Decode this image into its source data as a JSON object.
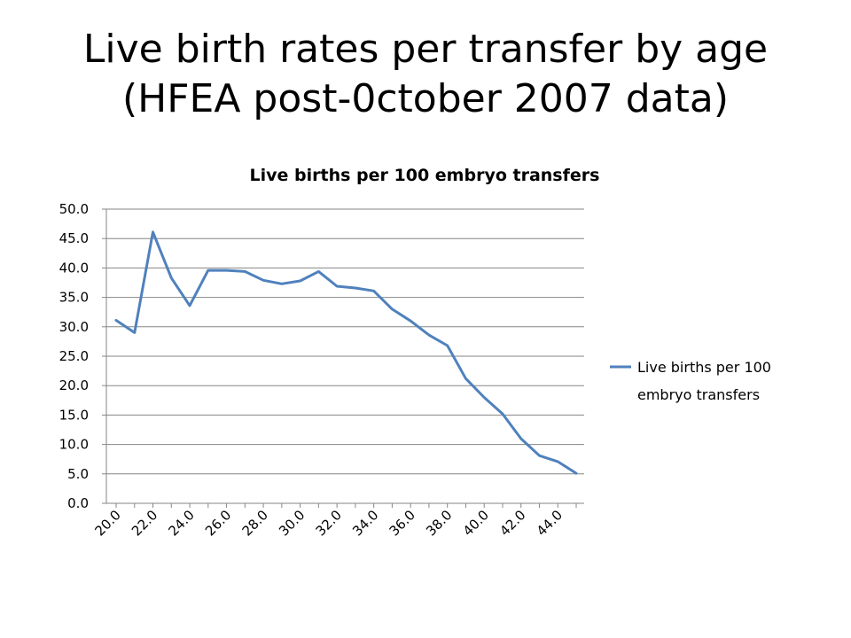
{
  "slide": {
    "title_line1": "Live birth rates per transfer by age",
    "title_line2": "(HFEA post-0ctober 2007 data)"
  },
  "chart_data": {
    "type": "line",
    "title": "Live births per 100 embryo transfers",
    "xlabel": "",
    "ylabel": "",
    "ylim": [
      0,
      50
    ],
    "y_ticks": [
      "0.0",
      "5.0",
      "10.0",
      "15.0",
      "20.0",
      "25.0",
      "30.0",
      "35.0",
      "40.0",
      "45.0",
      "50.0"
    ],
    "x": [
      20,
      21,
      22,
      23,
      24,
      25,
      26,
      27,
      28,
      29,
      30,
      31,
      32,
      33,
      34,
      35,
      36,
      37,
      38,
      39,
      40,
      41,
      42,
      43,
      44,
      45
    ],
    "x_tick_labels": [
      "20.0",
      "22.0",
      "24.0",
      "26.0",
      "28.0",
      "30.0",
      "32.0",
      "34.0",
      "36.0",
      "38.0",
      "40.0",
      "42.0",
      "44.0"
    ],
    "x_tick_values": [
      20,
      22,
      24,
      26,
      28,
      30,
      32,
      34,
      36,
      38,
      40,
      42,
      44
    ],
    "series": [
      {
        "name": "Live births per 100 embryo transfers",
        "color": "#4f81bd",
        "values": [
          31.1,
          29.0,
          46.1,
          38.3,
          33.6,
          39.6,
          39.6,
          39.4,
          37.9,
          37.3,
          37.8,
          39.4,
          36.9,
          36.6,
          36.1,
          33.0,
          31.0,
          28.6,
          26.8,
          21.2,
          18.0,
          15.2,
          11.0,
          8.1,
          7.1,
          5.1
        ]
      }
    ],
    "grid": true,
    "legend_position": "right"
  }
}
